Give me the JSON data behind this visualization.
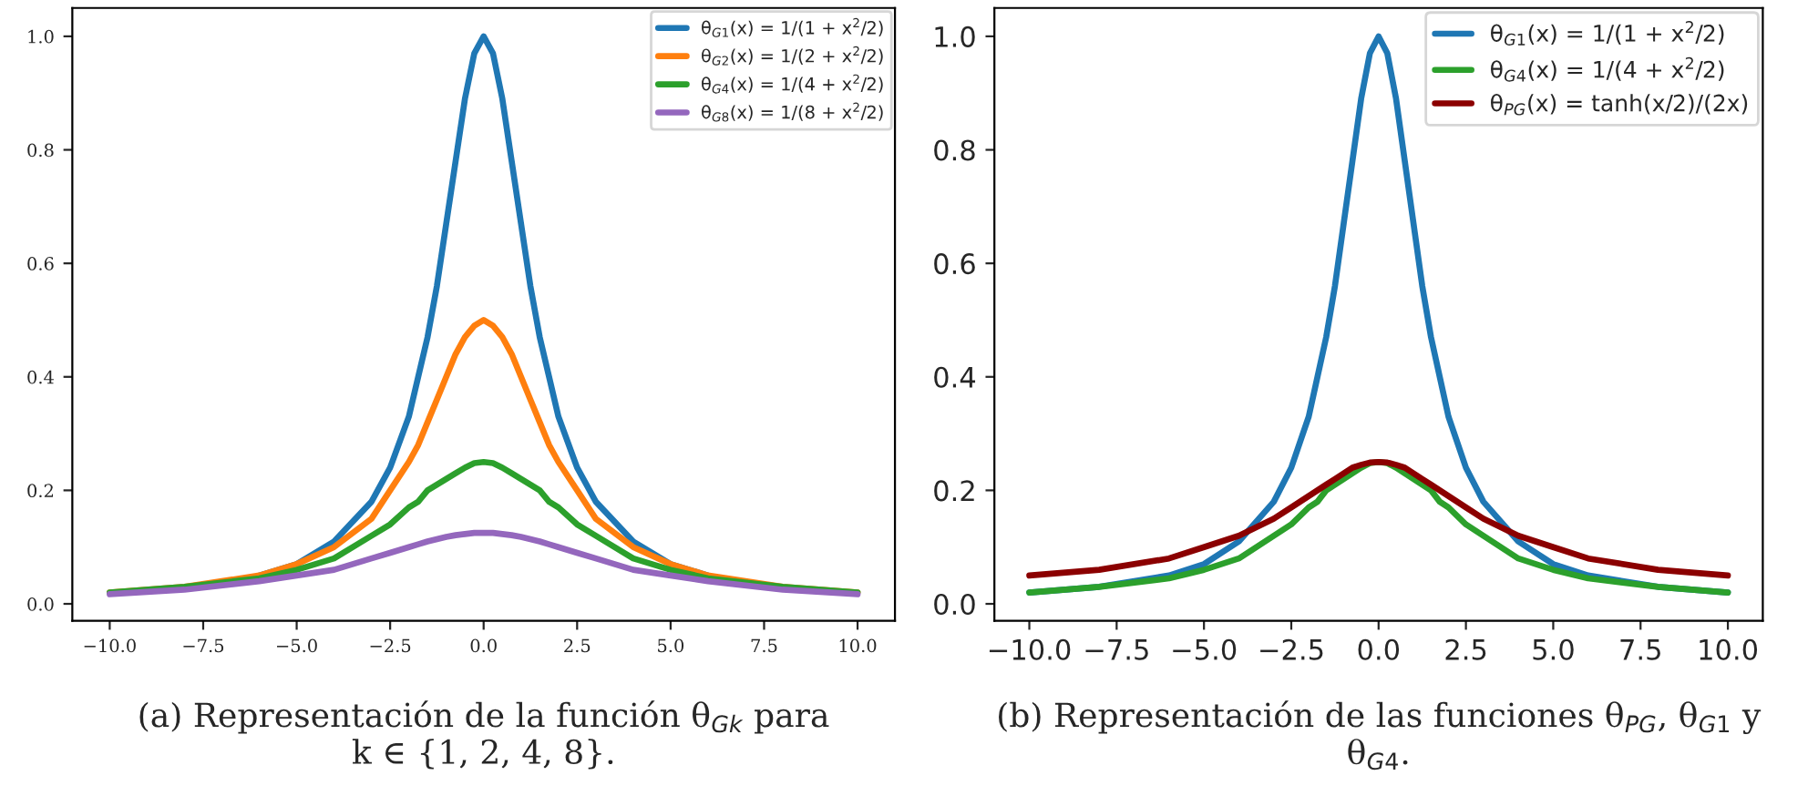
{
  "chart_data": [
    {
      "type": "line",
      "title": "(a) Representación de la función θ$_{Gk}$ para\nk ∈ {1, 2, 4, 8}.",
      "x": [
        -10,
        -8,
        -6,
        -5,
        -4,
        -3,
        -2.5,
        -2,
        -1.75,
        -1.5,
        -1.25,
        -1,
        -0.75,
        -0.5,
        -0.25,
        0,
        0.25,
        0.5,
        0.75,
        1,
        1.25,
        1.5,
        1.75,
        2,
        2.5,
        3,
        4,
        5,
        6,
        8,
        10
      ],
      "series": [
        {
          "name": "θ$_{G1}$(x) = 1/(1 + x$^{2}$/2)",
          "color": "#1f77b4",
          "values": [
            null,
            null,
            0.05,
            0.07,
            0.11,
            0.18,
            0.24,
            0.33,
            0.4,
            0.47,
            0.56,
            0.67,
            0.78,
            0.89,
            0.97,
            1.0,
            0.97,
            0.89,
            0.78,
            0.67,
            0.56,
            0.47,
            0.4,
            0.33,
            0.24,
            0.18,
            0.11,
            0.07,
            0.05,
            null,
            null
          ]
        },
        {
          "name": "θ$_{G2}$(x) = 1/(2 + x$^{2}$/2)",
          "color": "#ff7f0e",
          "values": [
            0.02,
            0.03,
            0.05,
            0.07,
            0.1,
            0.15,
            0.2,
            0.25,
            0.28,
            0.32,
            0.36,
            0.4,
            0.44,
            0.47,
            0.49,
            0.5,
            0.49,
            0.47,
            0.44,
            0.4,
            0.36,
            0.32,
            0.28,
            0.25,
            0.2,
            0.15,
            0.1,
            0.07,
            0.05,
            0.03,
            0.02
          ]
        },
        {
          "name": "θ$_{G4}$(x) = 1/(4 + x$^{2}$/2)",
          "color": "#2ca02c",
          "values": [
            0.02,
            0.03,
            0.045,
            0.06,
            0.08,
            0.12,
            0.14,
            0.17,
            0.18,
            0.2,
            0.21,
            0.22,
            0.23,
            0.24,
            0.248,
            0.25,
            0.248,
            0.24,
            0.23,
            0.22,
            0.21,
            0.2,
            0.18,
            0.17,
            0.14,
            0.12,
            0.08,
            0.06,
            0.045,
            0.03,
            0.02
          ]
        },
        {
          "name": "θ$_{G8}$(x) = 1/(8 + x$^{2}$/2)",
          "color": "#9467bd",
          "values": [
            0.017,
            0.025,
            0.04,
            0.05,
            0.06,
            0.08,
            0.09,
            0.1,
            0.105,
            0.11,
            0.114,
            0.118,
            0.121,
            0.123,
            0.125,
            0.125,
            0.125,
            0.123,
            0.121,
            0.118,
            0.114,
            0.11,
            0.105,
            0.1,
            0.09,
            0.08,
            0.06,
            0.05,
            0.04,
            0.025,
            0.017
          ]
        }
      ],
      "xlim": [
        -11,
        11
      ],
      "ylim": [
        -0.03,
        1.05
      ],
      "xticks": [
        {
          "value": -10,
          "label": "−10.0"
        },
        {
          "value": -7.5,
          "label": "−7.5"
        },
        {
          "value": -5,
          "label": "−5.0"
        },
        {
          "value": -2.5,
          "label": "−2.5"
        },
        {
          "value": 0,
          "label": "0.0"
        },
        {
          "value": 2.5,
          "label": "2.5"
        },
        {
          "value": 5,
          "label": "5.0"
        },
        {
          "value": 7.5,
          "label": "7.5"
        },
        {
          "value": 10,
          "label": "10.0"
        }
      ],
      "yticks": [
        {
          "value": 0,
          "label": "0.0"
        },
        {
          "value": 0.2,
          "label": "0.2"
        },
        {
          "value": 0.4,
          "label": "0.4"
        },
        {
          "value": 0.6,
          "label": "0.6"
        },
        {
          "value": 0.8,
          "label": "0.8"
        },
        {
          "value": 1,
          "label": "1.0"
        }
      ],
      "legend": "top right",
      "marker": "none",
      "line_style": "solid",
      "grid": false
    },
    {
      "type": "line",
      "title": "(b) Representación de las funciones θ$_{PG}$, θ$_{G1}$ y\nθ$_{G4}$.",
      "x": [
        -10,
        -8,
        -6,
        -5,
        -4,
        -3,
        -2.5,
        -2,
        -1.75,
        -1.5,
        -1.25,
        -1,
        -0.75,
        -0.5,
        -0.25,
        0,
        0.25,
        0.5,
        0.75,
        1,
        1.25,
        1.5,
        1.75,
        2,
        2.5,
        3,
        4,
        5,
        6,
        8,
        10
      ],
      "series": [
        {
          "name": "θ$_{G1}$(x) = 1/(1 + x$^{2}$/2)",
          "color": "#1f77b4",
          "values": [
            0.02,
            0.03,
            0.05,
            0.07,
            0.11,
            0.18,
            0.24,
            0.33,
            0.4,
            0.47,
            0.56,
            0.67,
            0.78,
            0.89,
            0.97,
            1.0,
            0.97,
            0.89,
            0.78,
            0.67,
            0.56,
            0.47,
            0.4,
            0.33,
            0.24,
            0.18,
            0.11,
            0.07,
            0.05,
            0.03,
            0.02
          ]
        },
        {
          "name": "θ$_{G4}$(x) = 1/(4 + x$^{2}$/2)",
          "color": "#2ca02c",
          "values": [
            0.02,
            0.03,
            0.045,
            0.06,
            0.08,
            0.12,
            0.14,
            0.17,
            0.18,
            0.2,
            0.21,
            0.22,
            0.23,
            0.24,
            0.248,
            0.25,
            0.248,
            0.24,
            0.23,
            0.22,
            0.21,
            0.2,
            0.18,
            0.17,
            0.14,
            0.12,
            0.08,
            0.06,
            0.045,
            0.03,
            0.02
          ]
        },
        {
          "name": "θ$_{PG}$(x) = tanh(x/2)/(2x)",
          "color": "#8b0000",
          "values": [
            0.05,
            0.06,
            0.08,
            0.1,
            0.12,
            0.15,
            0.17,
            0.19,
            0.2,
            0.21,
            0.22,
            0.23,
            0.24,
            0.245,
            0.249,
            0.25,
            0.249,
            0.245,
            0.24,
            0.23,
            0.22,
            0.21,
            0.2,
            0.19,
            0.17,
            0.15,
            0.12,
            0.1,
            0.08,
            0.06,
            0.05
          ]
        }
      ],
      "xlim": [
        -11,
        11
      ],
      "ylim": [
        -0.03,
        1.05
      ],
      "xticks": [
        {
          "value": -10,
          "label": "−10.0"
        },
        {
          "value": -7.5,
          "label": "−7.5"
        },
        {
          "value": -5,
          "label": "−5.0"
        },
        {
          "value": -2.5,
          "label": "−2.5"
        },
        {
          "value": 0,
          "label": "0.0"
        },
        {
          "value": 2.5,
          "label": "2.5"
        },
        {
          "value": 5,
          "label": "5.0"
        },
        {
          "value": 7.5,
          "label": "7.5"
        },
        {
          "value": 10,
          "label": "10.0"
        }
      ],
      "yticks": [
        {
          "value": 0,
          "label": "0.0"
        },
        {
          "value": 0.2,
          "label": "0.2"
        },
        {
          "value": 0.4,
          "label": "0.4"
        },
        {
          "value": 0.6,
          "label": "0.6"
        },
        {
          "value": 0.8,
          "label": "0.8"
        },
        {
          "value": 1,
          "label": "1.0"
        }
      ],
      "legend": "top right",
      "marker": "none",
      "line_style": "solid",
      "grid": false
    }
  ]
}
